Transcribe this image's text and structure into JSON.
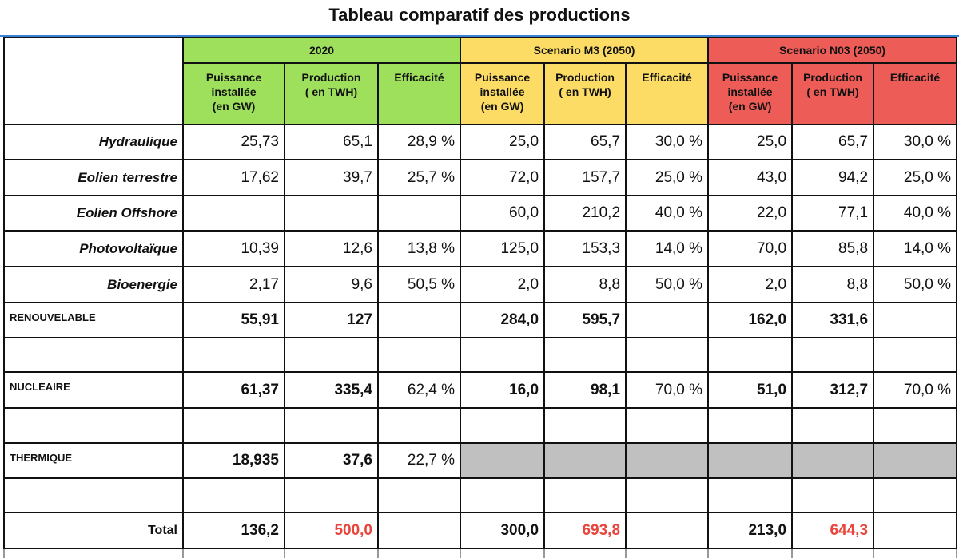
{
  "title": "Tableau comparatif des productions",
  "colors": {
    "2020": "#9ee05c",
    "m3": "#fcdc64",
    "n03": "#ee5c58",
    "total_production": "#e8453c",
    "not_applicable": "#c0c0c0"
  },
  "groups": [
    {
      "label": "2020",
      "color": "g"
    },
    {
      "label": "Scenario M3 (2050)",
      "color": "y"
    },
    {
      "label": "Scenario N03 (2050)",
      "color": "r"
    }
  ],
  "subheaders": [
    "Puissance\ninstallée\n(en GW)",
    "Production\n( en TWH)",
    "Efficacité"
  ],
  "rows": [
    {
      "label": "Hydraulique",
      "kind": "source",
      "values": [
        "25,73",
        "65,1",
        "28,9 %",
        "25,0",
        "65,7",
        "30,0 %",
        "25,0",
        "65,7",
        "30,0 %"
      ]
    },
    {
      "label": "Eolien terrestre",
      "kind": "source",
      "values": [
        "17,62",
        "39,7",
        "25,7 %",
        "72,0",
        "157,7",
        "25,0 %",
        "43,0",
        "94,2",
        "25,0 %"
      ]
    },
    {
      "label": "Eolien Offshore",
      "kind": "source",
      "values": [
        "",
        "",
        "",
        "60,0",
        "210,2",
        "40,0 %",
        "22,0",
        "77,1",
        "40,0 %"
      ]
    },
    {
      "label": "Photovoltaïque",
      "kind": "source",
      "values": [
        "10,39",
        "12,6",
        "13,8 %",
        "125,0",
        "153,3",
        "14,0 %",
        "70,0",
        "85,8",
        "14,0 %"
      ]
    },
    {
      "label": "Bioenergie",
      "kind": "source",
      "values": [
        "2,17",
        "9,6",
        "50,5 %",
        "2,0",
        "8,8",
        "50,0 %",
        "2,0",
        "8,8",
        "50,0 %"
      ]
    },
    {
      "label": "RENOUVELABLE",
      "kind": "category",
      "values": [
        "55,91",
        "127",
        "",
        "284,0",
        "595,7",
        "",
        "162,0",
        "331,6",
        ""
      ]
    },
    {
      "label": "",
      "kind": "blank",
      "values": [
        "",
        "",
        "",
        "",
        "",
        "",
        "",
        "",
        ""
      ]
    },
    {
      "label": "NUCLEAIRE",
      "kind": "category",
      "values": [
        "61,37",
        "335,4",
        "62,4 %",
        "16,0",
        "98,1",
        "70,0 %",
        "51,0",
        "312,7",
        "70,0 %"
      ]
    },
    {
      "label": "",
      "kind": "blank",
      "values": [
        "",
        "",
        "",
        "",
        "",
        "",
        "",
        "",
        ""
      ]
    },
    {
      "label": "THERMIQUE",
      "kind": "category",
      "values": [
        "18,935",
        "37,6",
        "22,7 %",
        "",
        "",
        "",
        "",
        "",
        ""
      ],
      "not_applicable_from": 3
    },
    {
      "label": "",
      "kind": "blank",
      "values": [
        "",
        "",
        "",
        "",
        "",
        "",
        "",
        "",
        ""
      ]
    },
    {
      "label": "Total",
      "kind": "total",
      "values": [
        "136,2",
        "500,0",
        "",
        "300,0",
        "693,8",
        "",
        "213,0",
        "644,3",
        ""
      ]
    }
  ]
}
